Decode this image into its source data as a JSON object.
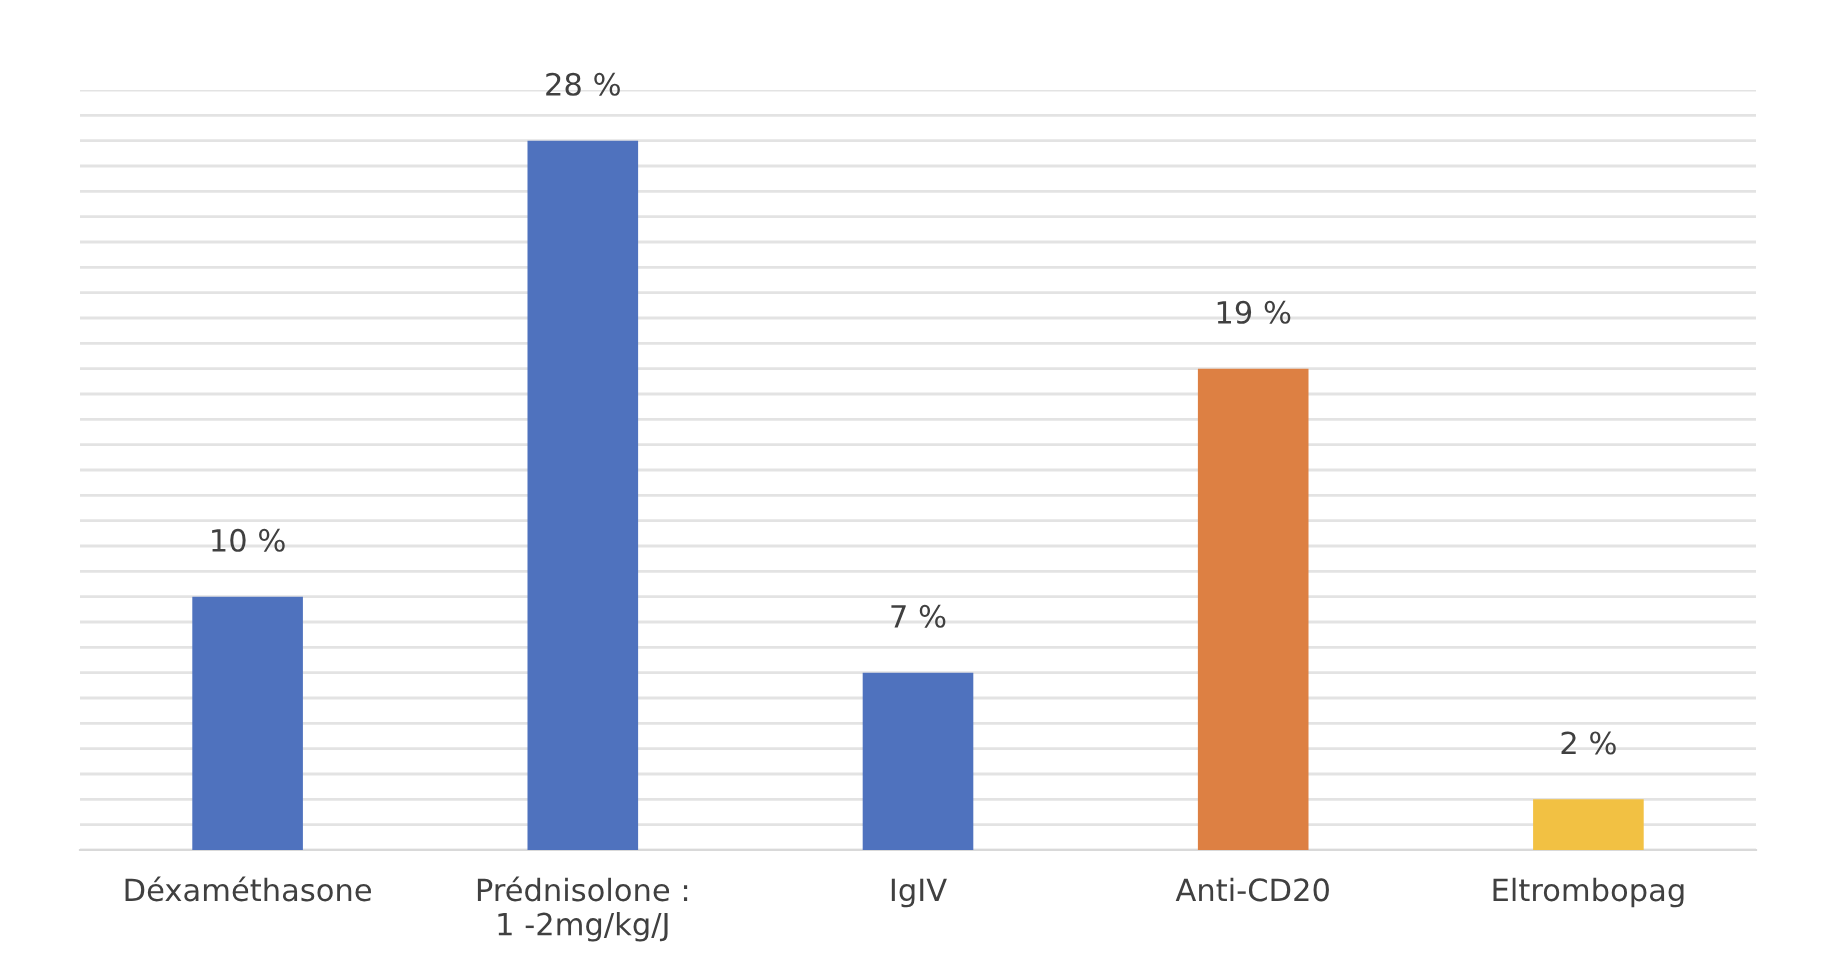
{
  "chart_data": {
    "type": "bar",
    "categories": [
      "Déxaméthasone",
      "Prédnisolone :\n1 -2mg/kg/J",
      "IgIV",
      "Anti-CD20",
      "Eltrombopag"
    ],
    "values": [
      10,
      28,
      7,
      19,
      2
    ],
    "colors": [
      "#4f72be",
      "#4f72be",
      "#4f72be",
      "#dd8043",
      "#f2c143"
    ],
    "value_labels": [
      "10 %",
      "28 %",
      "7 %",
      "19 %",
      "2 %"
    ],
    "ylim": [
      0,
      30
    ],
    "yticks": [
      {
        "value": 0,
        "label": null
      },
      {
        "value": 1,
        "label": null
      },
      {
        "value": 2,
        "label": null
      },
      {
        "value": 3,
        "label": null
      },
      {
        "value": 4,
        "label": null
      },
      {
        "value": 5,
        "label": null
      },
      {
        "value": 6,
        "label": null
      },
      {
        "value": 7,
        "label": null
      },
      {
        "value": 8,
        "label": null
      },
      {
        "value": 9,
        "label": null
      },
      {
        "value": 10,
        "label": null
      },
      {
        "value": 11,
        "label": null
      },
      {
        "value": 12,
        "label": null
      },
      {
        "value": 13,
        "label": null
      },
      {
        "value": 14,
        "label": null
      },
      {
        "value": 15,
        "label": null
      },
      {
        "value": 16,
        "label": null
      },
      {
        "value": 17,
        "label": null
      },
      {
        "value": 18,
        "label": null
      },
      {
        "value": 19,
        "label": null
      },
      {
        "value": 20,
        "label": null
      },
      {
        "value": 21,
        "label": null
      },
      {
        "value": 22,
        "label": null
      },
      {
        "value": 23,
        "label": null
      },
      {
        "value": 24,
        "label": null
      },
      {
        "value": 25,
        "label": null
      },
      {
        "value": 26,
        "label": null
      },
      {
        "value": 27,
        "label": null
      },
      {
        "value": 28,
        "label": null
      },
      {
        "value": 29,
        "label": null
      },
      {
        "value": 30,
        "label": null
      }
    ],
    "grid": "y",
    "tick_labels": "x"
  }
}
